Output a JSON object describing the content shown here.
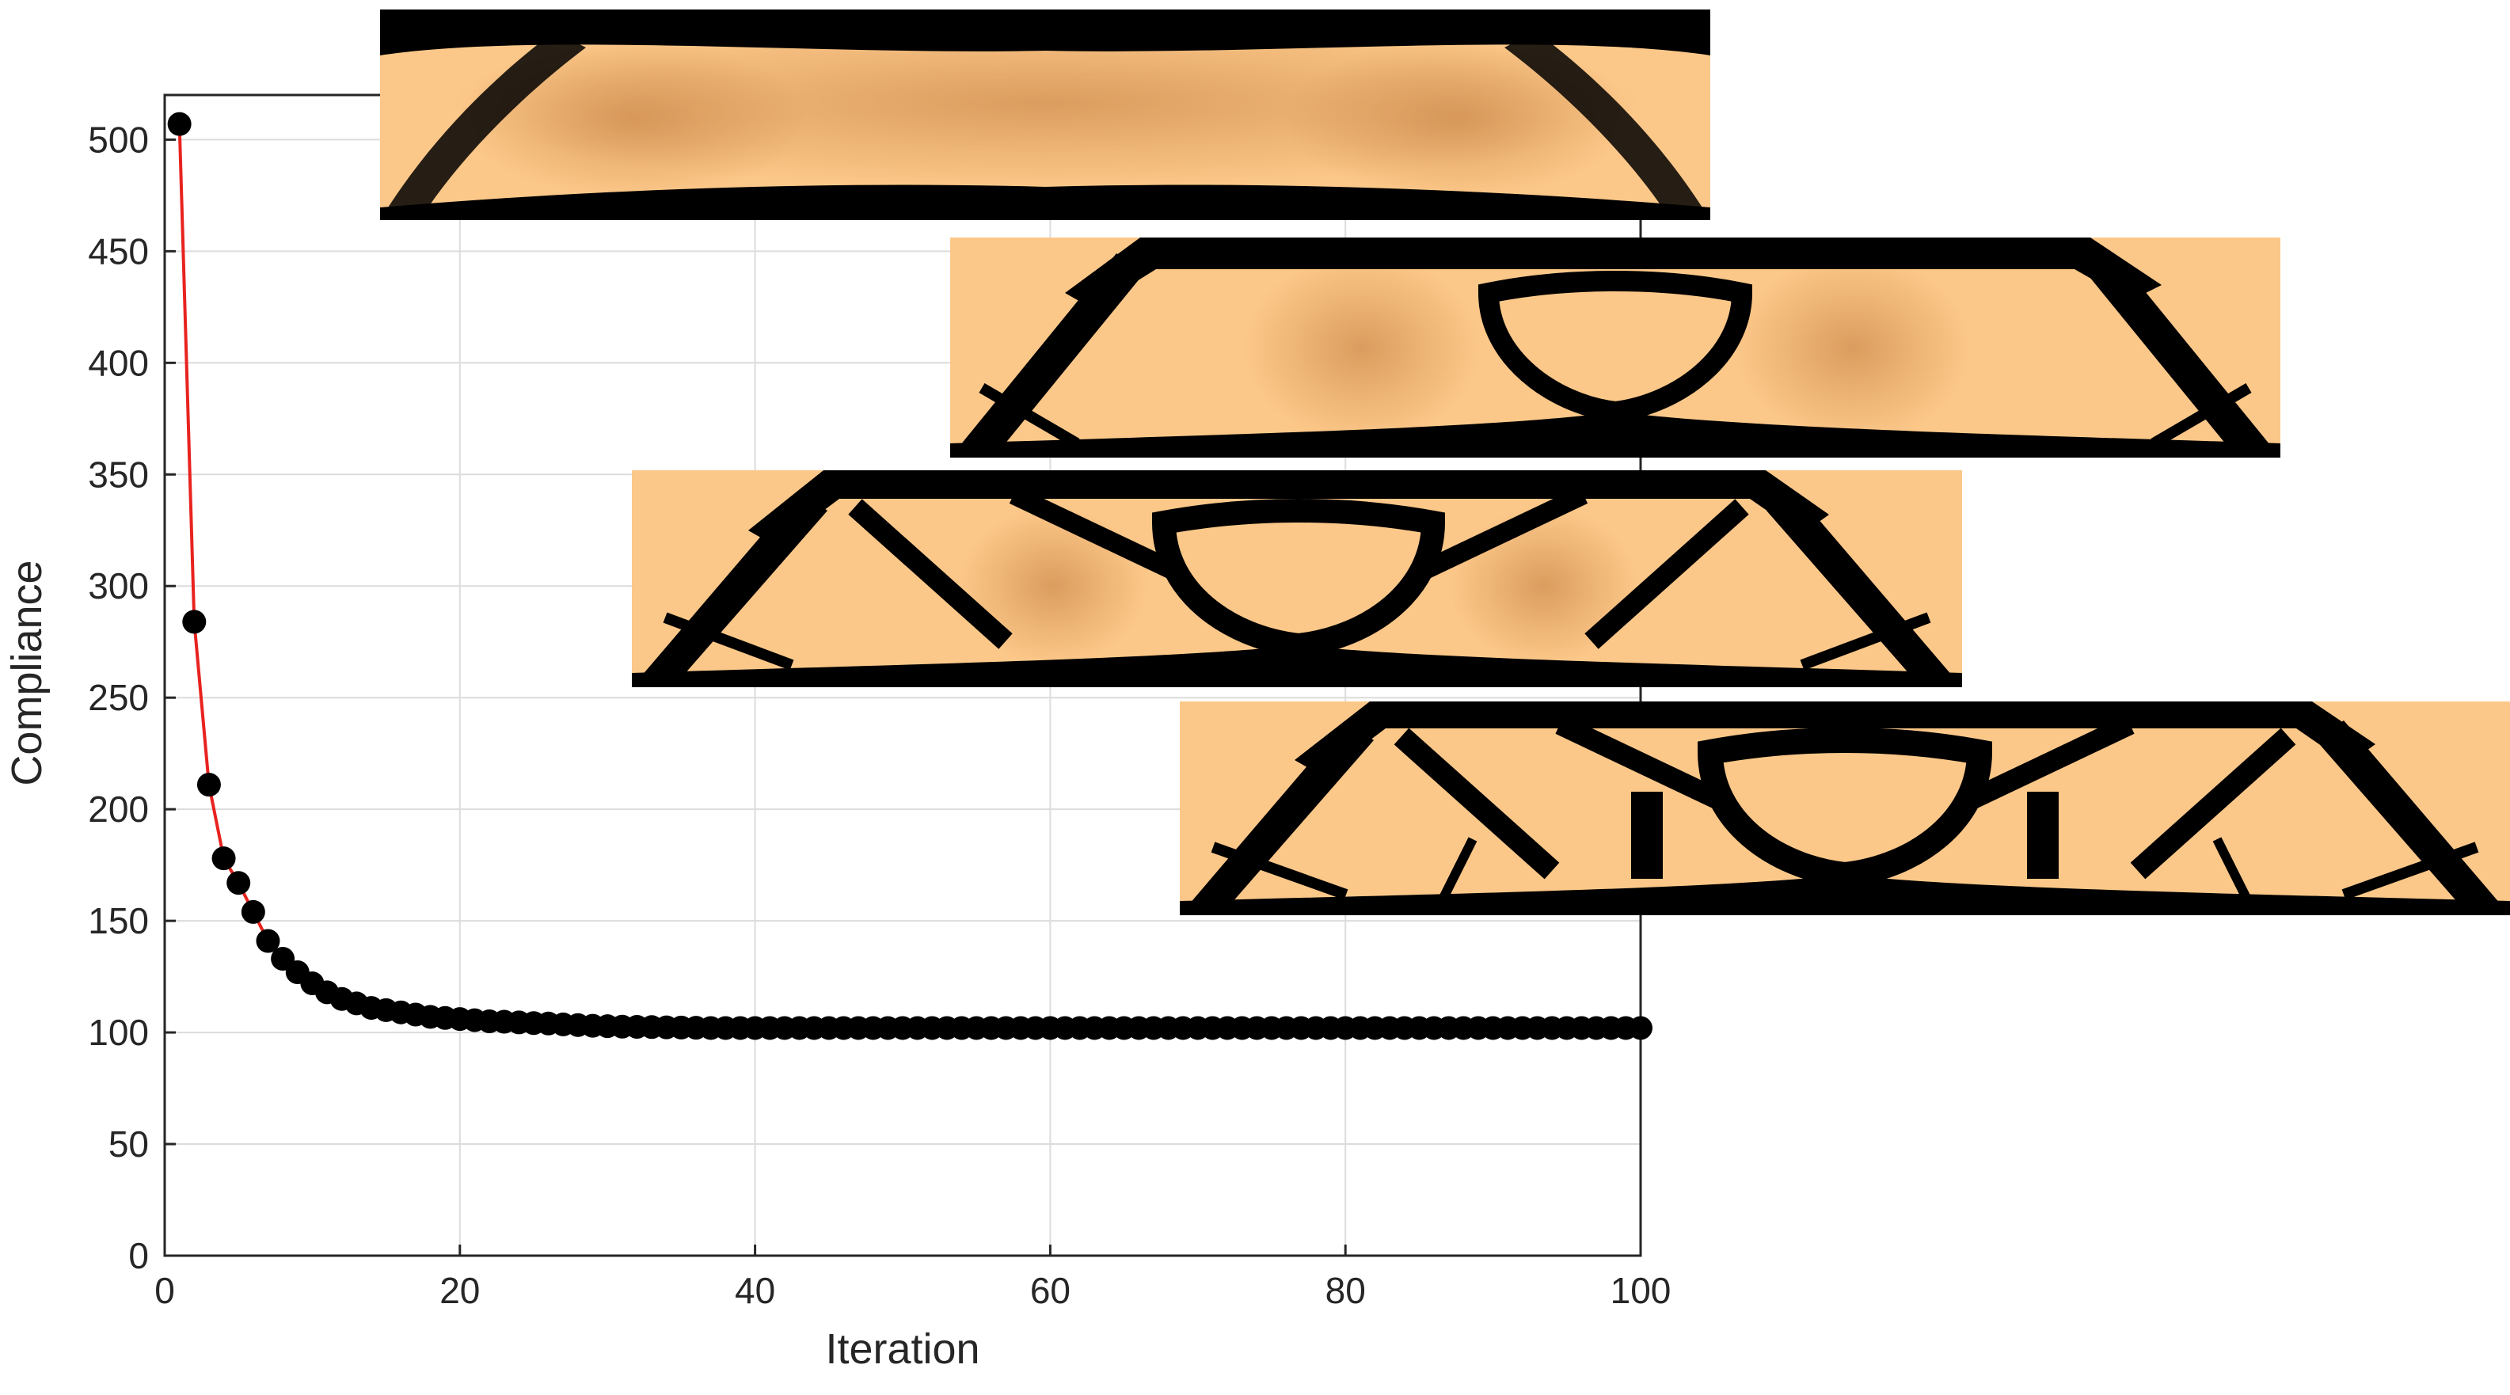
{
  "chart_data": {
    "type": "scatter",
    "title": "",
    "xlabel": "Iteration",
    "ylabel": "Compliance",
    "xlim": [
      0,
      100
    ],
    "ylim": [
      0,
      520
    ],
    "xticks": [
      0,
      20,
      40,
      60,
      80,
      100
    ],
    "yticks": [
      0,
      50,
      100,
      150,
      200,
      250,
      300,
      350,
      400,
      450,
      500
    ],
    "grid": true,
    "line_color": "#e8231f",
    "marker_color": "#000000",
    "series": [
      {
        "x": [
          1,
          2,
          3,
          4,
          5,
          6,
          7,
          8,
          9,
          10,
          11,
          12,
          13,
          14,
          15,
          16,
          17,
          18,
          19,
          20,
          21,
          22,
          23,
          24,
          25,
          26,
          27,
          28,
          29,
          30,
          31,
          32,
          33,
          34,
          35,
          36,
          37,
          38,
          39,
          40,
          41,
          42,
          43,
          44,
          45,
          46,
          47,
          48,
          49,
          50,
          51,
          52,
          53,
          54,
          55,
          56,
          57,
          58,
          59,
          60,
          61,
          62,
          63,
          64,
          65,
          66,
          67,
          68,
          69,
          70,
          71,
          72,
          73,
          74,
          75,
          76,
          77,
          78,
          79,
          80,
          81,
          82,
          83,
          84,
          85,
          86,
          87,
          88,
          89,
          90,
          91,
          92,
          93,
          94,
          95,
          96,
          97,
          98,
          99,
          100
        ],
        "y": [
          507,
          284,
          211,
          178,
          167,
          154,
          141,
          133,
          127,
          122,
          118,
          115,
          113,
          111,
          110,
          109,
          108,
          107,
          106.5,
          106,
          105.5,
          105,
          104.8,
          104.5,
          104.2,
          104,
          103.6,
          103.3,
          103,
          102.8,
          102.6,
          102.5,
          102.4,
          102.3,
          102.2,
          102.1,
          102,
          102,
          102,
          102,
          102,
          102,
          102,
          102,
          102,
          102,
          102,
          102,
          102,
          102,
          102,
          102,
          102,
          102,
          102,
          102,
          102,
          102,
          102,
          102,
          102,
          102,
          102,
          102,
          102,
          102,
          102,
          102,
          102,
          102,
          102,
          102,
          102,
          102,
          102,
          102,
          102,
          102,
          102,
          102,
          102,
          102,
          102,
          102,
          102,
          102,
          102,
          102,
          102,
          102,
          102,
          102,
          102,
          102,
          102,
          102,
          102,
          102,
          102,
          102
        ]
      }
    ]
  },
  "insets": {
    "material_color": "#fcc889",
    "void_color": "#000000",
    "count": 4
  }
}
